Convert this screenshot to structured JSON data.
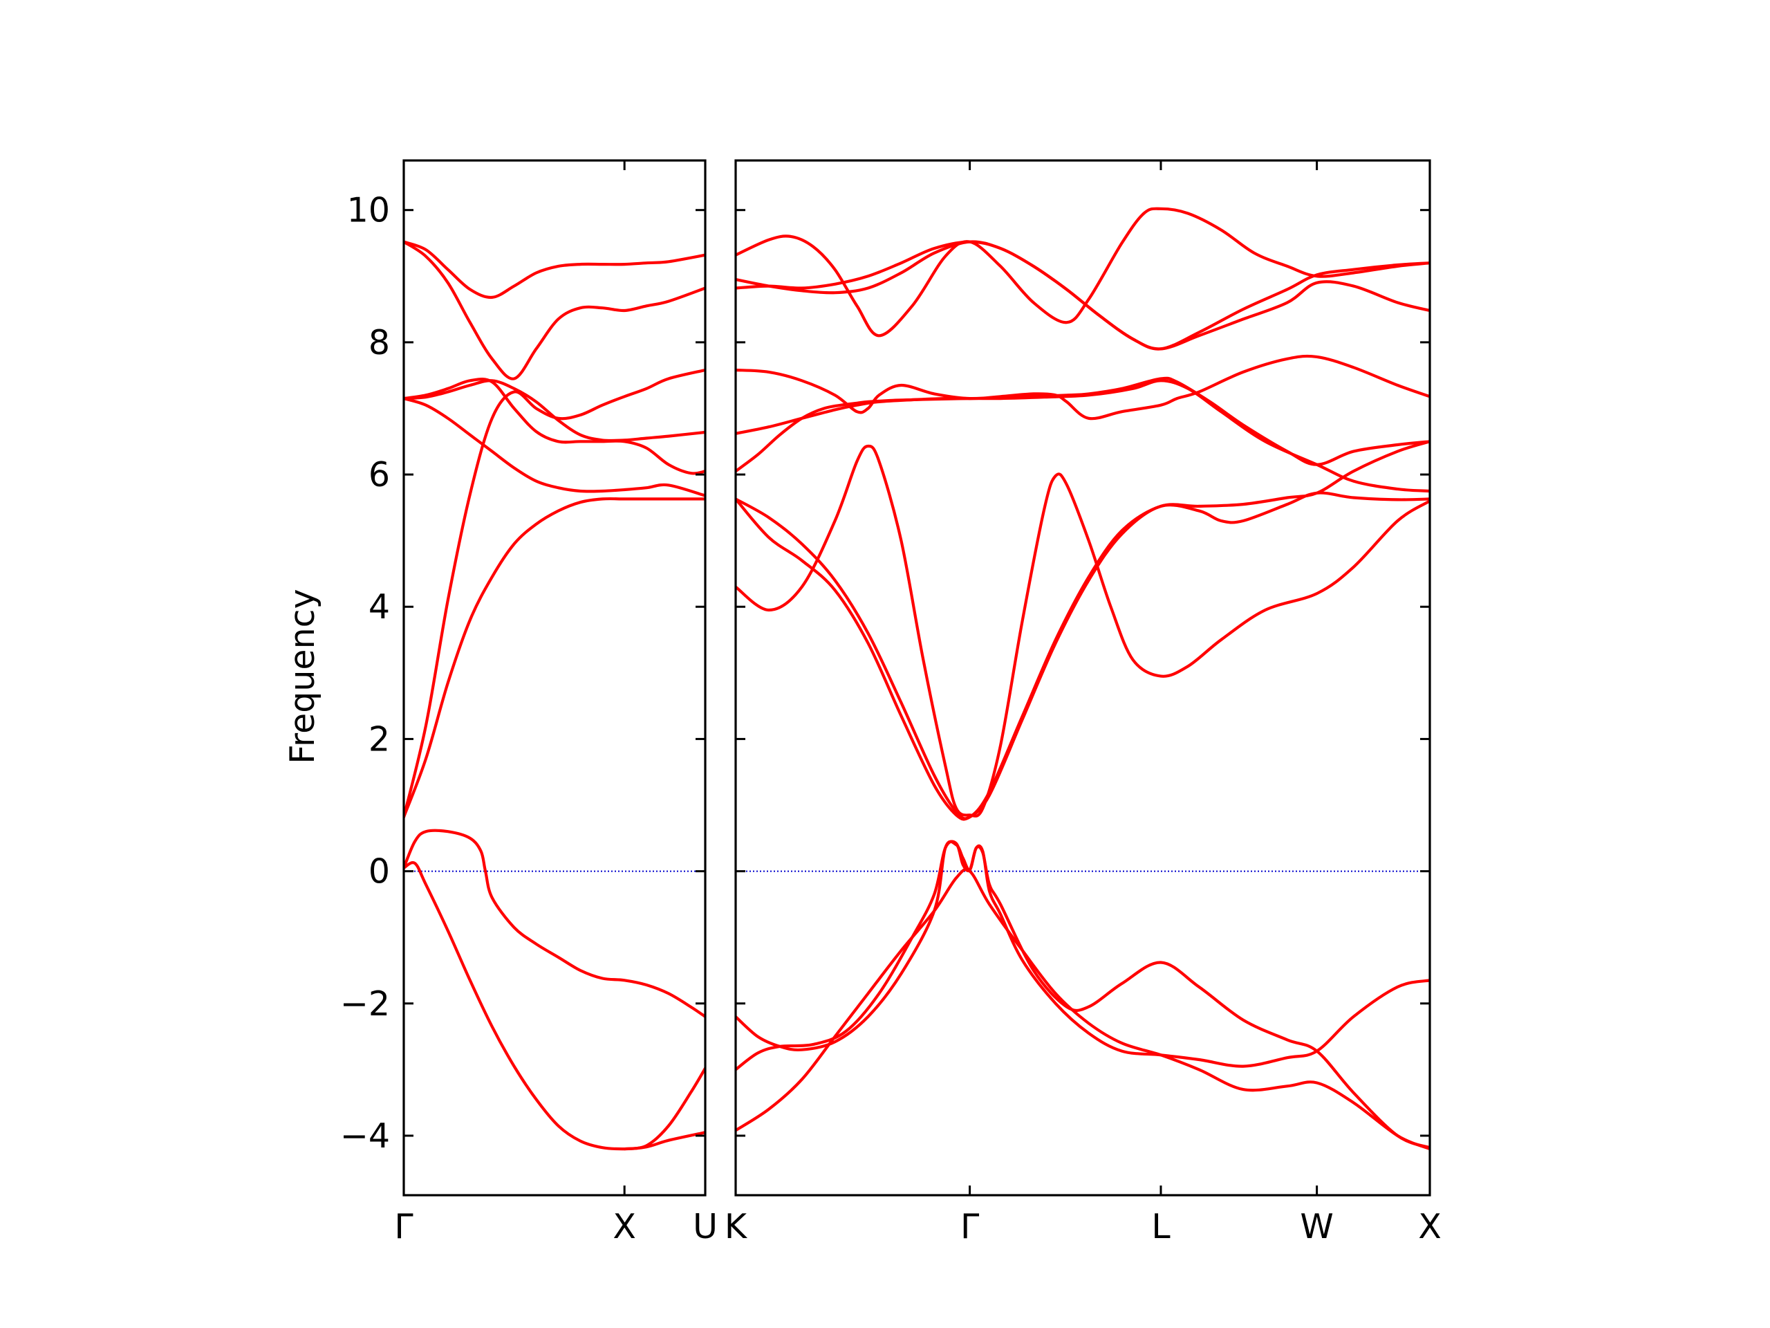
{
  "chart_data": {
    "type": "line",
    "title": "",
    "xlabel": "",
    "ylabel": "Frequency",
    "ylim": [
      -4.9,
      10.75
    ],
    "yticks": [
      -4,
      -2,
      0,
      2,
      4,
      6,
      8,
      10
    ],
    "ytick_labels": [
      "−4",
      "−2",
      "0",
      "2",
      "4",
      "6",
      "8",
      "10"
    ],
    "grid": false,
    "line_color": "#ff0000",
    "zero_line_color": "#0000cc",
    "panels": [
      {
        "name": "Gamma-X-U",
        "xlim": [
          0,
          1.366
        ],
        "xticks": [
          0,
          1.0,
          1.366
        ],
        "xtick_labels": [
          "Γ",
          "X",
          "U"
        ],
        "series": [
          {
            "x": [
              0,
              0.1,
              0.2,
              0.3,
              0.4,
              0.5,
              0.6,
              0.7,
              0.8,
              0.9,
              1.0,
              1.1,
              1.2,
              1.366
            ],
            "values": [
              9.52,
              9.4,
              9.1,
              8.8,
              8.68,
              8.85,
              9.05,
              9.15,
              9.18,
              9.18,
              9.18,
              9.2,
              9.22,
              9.32
            ]
          },
          {
            "x": [
              0,
              0.1,
              0.2,
              0.3,
              0.4,
              0.5,
              0.6,
              0.7,
              0.8,
              0.9,
              1.0,
              1.1,
              1.2,
              1.366
            ],
            "values": [
              9.52,
              9.3,
              8.9,
              8.3,
              7.75,
              7.45,
              7.9,
              8.35,
              8.52,
              8.52,
              8.48,
              8.55,
              8.62,
              8.82
            ]
          },
          {
            "x": [
              0,
              0.1,
              0.2,
              0.3,
              0.4,
              0.5,
              0.6,
              0.7,
              0.8,
              0.9,
              1.0,
              1.1,
              1.2,
              1.366
            ],
            "values": [
              7.15,
              7.17,
              7.25,
              7.35,
              7.42,
              7.3,
              7.1,
              6.82,
              6.6,
              6.52,
              6.52,
              6.55,
              6.58,
              6.64
            ]
          },
          {
            "x": [
              0,
              0.1,
              0.2,
              0.3,
              0.4,
              0.5,
              0.6,
              0.7,
              0.8,
              0.9,
              1.0,
              1.1,
              1.2,
              1.366
            ],
            "values": [
              7.15,
              7.05,
              6.85,
              6.6,
              6.35,
              6.1,
              5.9,
              5.8,
              5.75,
              5.75,
              5.77,
              5.8,
              5.84,
              5.68
            ]
          },
          {
            "x": [
              0,
              0.1,
              0.2,
              0.3,
              0.4,
              0.5,
              0.6,
              0.7,
              0.8,
              0.9,
              1.0,
              1.1,
              1.2,
              1.366
            ],
            "values": [
              0.82,
              2.2,
              4.1,
              5.7,
              6.85,
              7.25,
              7.0,
              6.85,
              6.9,
              7.05,
              7.18,
              7.3,
              7.45,
              7.58
            ]
          },
          {
            "x": [
              0,
              0.1,
              0.2,
              0.3,
              0.4,
              0.5,
              0.6,
              0.7,
              0.8,
              0.9,
              1.0,
              1.1,
              1.2,
              1.366
            ],
            "values": [
              0.82,
              1.7,
              2.85,
              3.8,
              4.45,
              4.95,
              5.25,
              5.45,
              5.58,
              5.63,
              5.63,
              5.63,
              5.63,
              5.63
            ]
          },
          {
            "x": [
              0,
              0.1,
              0.2,
              0.3,
              0.4,
              0.5,
              0.6,
              0.7,
              0.8,
              0.9,
              1.0,
              1.1,
              1.2,
              1.3,
              1.366
            ],
            "values": [
              7.15,
              7.2,
              7.3,
              7.42,
              7.4,
              7.0,
              6.65,
              6.5,
              6.5,
              6.5,
              6.5,
              6.4,
              6.15,
              6.02,
              6.05
            ]
          },
          {
            "x": [
              0,
              0.05,
              0.1,
              0.2,
              0.3,
              0.35,
              0.37,
              0.4,
              0.5,
              0.6,
              0.7,
              0.8,
              0.9,
              1.0,
              1.1,
              1.2,
              1.3,
              1.366
            ],
            "values": [
              0.05,
              0.45,
              0.6,
              0.6,
              0.5,
              0.3,
              0.0,
              -0.4,
              -0.85,
              -1.1,
              -1.3,
              -1.5,
              -1.62,
              -1.65,
              -1.72,
              -1.85,
              -2.05,
              -2.2
            ]
          },
          {
            "x": [
              0,
              0.05,
              0.1,
              0.2,
              0.3,
              0.4,
              0.5,
              0.6,
              0.7,
              0.8,
              0.9,
              1.0,
              1.1,
              1.2,
              1.366
            ],
            "values": [
              0.05,
              0.12,
              -0.2,
              -0.9,
              -1.65,
              -2.35,
              -2.95,
              -3.45,
              -3.85,
              -4.08,
              -4.18,
              -4.2,
              -4.17,
              -4.07,
              -3.95
            ]
          },
          {
            "x": [
              1.0,
              1.1,
              1.2,
              1.3,
              1.366
            ],
            "values": [
              -4.2,
              -4.15,
              -3.85,
              -3.35,
              -2.98
            ]
          }
        ]
      },
      {
        "name": "K-Gamma-L-W-X",
        "xlim": [
          0,
          3.146
        ],
        "xticks": [
          0,
          1.061,
          1.927,
          2.634,
          3.146
        ],
        "xtick_labels": [
          "K",
          "Γ",
          "L",
          "W",
          "X"
        ],
        "series": [
          {
            "x": [
              0,
              0.15,
              0.25,
              0.35,
              0.45,
              0.55,
              0.65,
              0.8,
              0.95,
              1.061,
              1.2,
              1.35,
              1.5,
              1.6,
              1.75,
              1.85,
              1.927,
              2.05,
              2.2,
              2.35,
              2.5,
              2.634,
              2.8,
              3.0,
              3.146
            ],
            "values": [
              9.32,
              9.55,
              9.6,
              9.45,
              9.1,
              8.55,
              8.1,
              8.55,
              9.3,
              9.52,
              9.15,
              8.6,
              8.3,
              8.65,
              9.5,
              9.95,
              10.02,
              9.95,
              9.7,
              9.35,
              9.15,
              9.0,
              9.05,
              9.15,
              9.2
            ]
          },
          {
            "x": [
              0,
              0.15,
              0.3,
              0.45,
              0.6,
              0.75,
              0.9,
              1.061,
              1.2,
              1.35,
              1.5,
              1.65,
              1.8,
              1.927,
              2.1,
              2.3,
              2.5,
              2.634,
              2.8,
              3.0,
              3.146
            ],
            "values": [
              8.95,
              8.85,
              8.78,
              8.75,
              8.82,
              9.05,
              9.35,
              9.52,
              9.42,
              9.15,
              8.8,
              8.4,
              8.05,
              7.9,
              8.15,
              8.5,
              8.8,
              9.02,
              9.1,
              9.17,
              9.2
            ]
          },
          {
            "x": [
              0,
              0.15,
              0.3,
              0.45,
              0.6,
              0.75,
              0.9,
              1.061,
              1.2,
              1.35,
              1.5,
              1.65,
              1.8,
              1.927,
              2.1,
              2.3,
              2.5,
              2.634,
              2.8,
              3.0,
              3.146
            ],
            "values": [
              8.82,
              8.85,
              8.82,
              8.88,
              9.0,
              9.2,
              9.42,
              9.52,
              9.42,
              9.15,
              8.8,
              8.4,
              8.05,
              7.9,
              8.1,
              8.35,
              8.6,
              8.9,
              8.85,
              8.6,
              8.48
            ]
          },
          {
            "x": [
              0,
              0.15,
              0.3,
              0.45,
              0.55,
              0.6,
              0.65,
              0.75,
              0.9,
              1.061,
              1.2,
              1.35,
              1.45,
              1.5,
              1.6,
              1.75,
              1.927,
              2.0,
              2.1,
              2.3,
              2.5,
              2.634,
              2.8,
              3.0,
              3.146
            ],
            "values": [
              7.58,
              7.55,
              7.42,
              7.2,
              6.95,
              7.0,
              7.2,
              7.35,
              7.22,
              7.15,
              7.18,
              7.22,
              7.2,
              7.1,
              6.85,
              6.95,
              7.05,
              7.15,
              7.25,
              7.55,
              7.75,
              7.78,
              7.62,
              7.35,
              7.18
            ]
          },
          {
            "x": [
              0,
              0.15,
              0.3,
              0.45,
              0.55,
              0.65,
              0.8,
              0.95,
              1.061,
              1.2,
              1.35,
              1.5,
              1.6,
              1.75,
              1.927,
              2.0,
              2.15,
              2.3,
              2.5,
              2.634,
              2.8,
              3.0,
              3.146
            ],
            "values": [
              6.62,
              6.72,
              6.85,
              6.98,
              7.05,
              7.1,
              7.13,
              7.15,
              7.15,
              7.16,
              7.18,
              7.2,
              7.22,
              7.3,
              7.45,
              7.4,
              7.1,
              6.75,
              6.35,
              6.15,
              6.35,
              6.45,
              6.5
            ]
          },
          {
            "x": [
              0,
              0.1,
              0.2,
              0.3,
              0.4,
              0.5,
              0.55,
              0.6,
              0.7,
              0.8,
              0.9,
              1.061,
              1.2,
              1.4,
              1.6,
              1.8,
              1.927,
              2.05,
              2.2,
              2.4,
              2.634,
              2.8,
              3.0,
              3.146
            ],
            "values": [
              6.05,
              6.3,
              6.6,
              6.85,
              7.0,
              7.06,
              7.08,
              7.1,
              7.12,
              7.13,
              7.14,
              7.15,
              7.15,
              7.17,
              7.2,
              7.3,
              7.42,
              7.3,
              6.95,
              6.5,
              6.15,
              5.9,
              5.78,
              5.75
            ]
          },
          {
            "x": [
              0,
              0.15,
              0.3,
              0.45,
              0.55,
              0.6,
              0.65,
              0.75,
              0.85,
              0.95,
              1.0,
              1.061,
              1.12,
              1.2,
              1.3,
              1.4,
              1.45,
              1.5,
              1.6,
              1.7,
              1.8,
              1.927,
              2.05,
              2.2,
              2.4,
              2.634,
              2.8,
              3.0,
              3.146
            ],
            "values": [
              4.3,
              3.95,
              4.3,
              5.3,
              6.2,
              6.43,
              6.2,
              5.0,
              3.2,
              1.6,
              0.95,
              0.85,
              0.95,
              1.9,
              3.8,
              5.5,
              5.98,
              5.85,
              5.0,
              4.0,
              3.2,
              2.95,
              3.1,
              3.5,
              3.95,
              4.2,
              4.6,
              5.3,
              5.6
            ]
          },
          {
            "x": [
              0,
              0.15,
              0.3,
              0.45,
              0.6,
              0.75,
              0.9,
              1.0,
              1.061,
              1.15,
              1.3,
              1.45,
              1.6,
              1.75,
              1.927,
              2.1,
              2.3,
              2.5,
              2.634,
              2.8,
              3.0,
              3.146
            ],
            "values": [
              5.63,
              5.35,
              4.95,
              4.4,
              3.6,
              2.55,
              1.45,
              0.9,
              0.82,
              1.2,
              2.35,
              3.5,
              4.45,
              5.15,
              5.52,
              5.52,
              5.55,
              5.65,
              5.72,
              6.05,
              6.35,
              6.5
            ]
          },
          {
            "x": [
              0,
              0.15,
              0.3,
              0.45,
              0.6,
              0.75,
              0.9,
              1.0,
              1.061,
              1.15,
              1.3,
              1.45,
              1.6,
              1.75,
              1.927,
              2.1,
              2.2,
              2.3,
              2.5,
              2.634,
              2.8,
              3.0,
              3.146
            ],
            "values": [
              5.63,
              5.05,
              4.7,
              4.25,
              3.45,
              2.35,
              1.3,
              0.85,
              0.82,
              1.15,
              2.3,
              3.45,
              4.4,
              5.1,
              5.52,
              5.45,
              5.3,
              5.3,
              5.55,
              5.72,
              5.65,
              5.62,
              5.63
            ]
          },
          {
            "x": [
              0,
              0.1,
              0.2,
              0.3,
              0.45,
              0.6,
              0.75,
              0.9,
              0.95,
              1.0,
              1.03,
              1.061,
              1.09,
              1.12,
              1.15,
              1.2,
              1.3,
              1.45,
              1.6,
              1.75,
              1.927,
              2.1,
              2.3,
              2.5,
              2.634,
              2.8,
              3.0,
              3.146
            ],
            "values": [
              -2.2,
              -2.5,
              -2.65,
              -2.7,
              -2.58,
              -2.2,
              -1.55,
              -0.6,
              0.35,
              0.4,
              0.2,
              0.02,
              0.35,
              0.3,
              -0.3,
              -0.65,
              -1.35,
              -2.0,
              -2.45,
              -2.72,
              -2.78,
              -2.85,
              -2.95,
              -2.82,
              -2.72,
              -2.2,
              -1.75,
              -1.65
            ]
          },
          {
            "x": [
              0,
              0.1,
              0.2,
              0.35,
              0.5,
              0.65,
              0.8,
              0.9,
              0.95,
              1.0,
              1.03,
              1.061,
              1.09,
              1.12,
              1.15,
              1.2,
              1.35,
              1.5,
              1.6,
              1.75,
              1.927,
              2.1,
              2.3,
              2.5,
              2.634,
              2.8,
              3.0,
              3.146
            ],
            "values": [
              -3.0,
              -2.75,
              -2.65,
              -2.62,
              -2.42,
              -1.85,
              -1.0,
              -0.35,
              0.35,
              0.42,
              0.1,
              0.02,
              0.35,
              0.28,
              -0.2,
              -0.5,
              -1.5,
              -2.05,
              -2.05,
              -1.7,
              -1.38,
              -1.75,
              -2.25,
              -2.55,
              -2.72,
              -3.35,
              -4.0,
              -4.18
            ]
          },
          {
            "x": [
              0,
              0.15,
              0.3,
              0.45,
              0.6,
              0.75,
              0.9,
              1.0,
              1.061,
              1.15,
              1.3,
              1.45,
              1.6,
              1.75,
              1.927,
              2.1,
              2.3,
              2.5,
              2.634,
              2.8,
              3.0,
              3.146
            ],
            "values": [
              -3.92,
              -3.6,
              -3.15,
              -2.5,
              -1.85,
              -1.2,
              -0.6,
              -0.1,
              0.0,
              -0.5,
              -1.2,
              -1.85,
              -2.3,
              -2.6,
              -2.78,
              -3.0,
              -3.3,
              -3.25,
              -3.2,
              -3.5,
              -4.0,
              -4.2
            ]
          }
        ]
      }
    ]
  }
}
